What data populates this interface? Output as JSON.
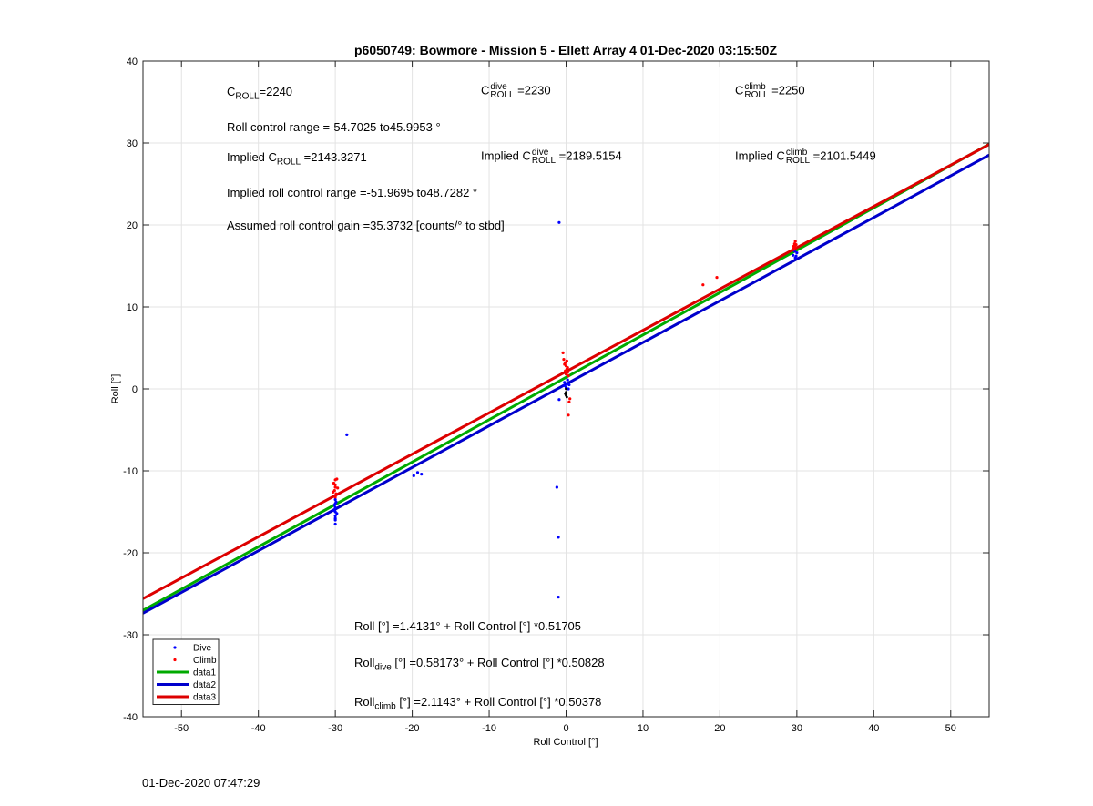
{
  "chart_data": {
    "type": "scatter",
    "title": "p6050749: Bowmore - Mission 5 - Ellett Array 4 01-Dec-2020 03:15:50Z",
    "xlabel": "Roll Control [°]",
    "ylabel": "Roll [°]",
    "xlim": [
      -55,
      55
    ],
    "ylim": [
      -40,
      40
    ],
    "xticks": [
      -50,
      -40,
      -30,
      -20,
      -10,
      0,
      10,
      20,
      30,
      40,
      50
    ],
    "yticks": [
      -40,
      -30,
      -20,
      -10,
      0,
      10,
      20,
      30,
      40
    ],
    "grid": true,
    "legend_position": "bottom-left",
    "series": [
      {
        "name": "Dive",
        "kind": "points",
        "color": "#0000ff",
        "points": [
          [
            -30.0,
            -13.5
          ],
          [
            -30.0,
            -14.0
          ],
          [
            -30.0,
            -14.5
          ],
          [
            -30.0,
            -15.0
          ],
          [
            -30.0,
            -15.5
          ],
          [
            -30.0,
            -16.0
          ],
          [
            -30.0,
            -16.5
          ],
          [
            -30.2,
            -14.8
          ],
          [
            -29.8,
            -15.2
          ],
          [
            -30.1,
            -14.2
          ],
          [
            -29.9,
            -13.8
          ],
          [
            -30.0,
            -15.8
          ],
          [
            -28.5,
            -5.6
          ],
          [
            -19.8,
            -10.6
          ],
          [
            -19.3,
            -10.2
          ],
          [
            -18.8,
            -10.4
          ],
          [
            -1.2,
            -12.0
          ],
          [
            -1.0,
            -18.1
          ],
          [
            -1.0,
            -25.4
          ],
          [
            -0.9,
            20.3
          ],
          [
            -0.9,
            -1.3
          ],
          [
            -0.3,
            0.4
          ],
          [
            -0.2,
            0.8
          ],
          [
            0.0,
            0.2
          ],
          [
            0.1,
            0.6
          ],
          [
            0.2,
            1.1
          ],
          [
            0.3,
            0.0
          ],
          [
            0.4,
            0.5
          ],
          [
            29.5,
            16.3
          ],
          [
            29.8,
            16.0
          ],
          [
            30.0,
            16.6
          ],
          [
            29.7,
            16.8
          ],
          [
            29.9,
            16.2
          ]
        ]
      },
      {
        "name": "Climb",
        "kind": "points",
        "color": "#ff0000",
        "points": [
          [
            -30.0,
            -11.1
          ],
          [
            -30.2,
            -11.5
          ],
          [
            -29.8,
            -11.0
          ],
          [
            -30.0,
            -12.0
          ],
          [
            -30.1,
            -12.4
          ],
          [
            -29.9,
            -12.8
          ],
          [
            -30.0,
            -13.2
          ],
          [
            -29.7,
            -12.1
          ],
          [
            -30.3,
            -12.6
          ],
          [
            -30.0,
            -11.7
          ],
          [
            -0.4,
            4.4
          ],
          [
            -0.3,
            3.6
          ],
          [
            -0.1,
            3.2
          ],
          [
            0.0,
            2.8
          ],
          [
            0.1,
            2.4
          ],
          [
            0.2,
            2.0
          ],
          [
            0.3,
            1.6
          ],
          [
            -0.2,
            3.0
          ],
          [
            0.1,
            3.4
          ],
          [
            -0.1,
            2.2
          ],
          [
            0.0,
            1.8
          ],
          [
            0.2,
            2.6
          ],
          [
            0.3,
            -3.2
          ],
          [
            0.4,
            -1.6
          ],
          [
            0.5,
            -1.2
          ],
          [
            17.8,
            12.7
          ],
          [
            19.6,
            13.6
          ],
          [
            29.5,
            17.1
          ],
          [
            29.6,
            17.4
          ],
          [
            29.7,
            17.7
          ],
          [
            29.8,
            18.0
          ],
          [
            29.9,
            17.6
          ],
          [
            29.6,
            17.0
          ],
          [
            29.8,
            17.3
          ]
        ]
      },
      {
        "name": "data1",
        "kind": "line",
        "color": "#00aa00",
        "intercept": 1.4131,
        "slope": 0.51705
      },
      {
        "name": "data2",
        "kind": "line",
        "color": "#0000cc",
        "intercept": 0.58173,
        "slope": 0.50828
      },
      {
        "name": "data3",
        "kind": "line",
        "color": "#dd0000",
        "intercept": 2.1143,
        "slope": 0.50378
      }
    ],
    "annotations": {
      "c_roll": {
        "base": "C",
        "sub": "ROLL",
        "value": "=2240"
      },
      "c_dive": {
        "base": "C",
        "sup": "dive",
        "sub": "ROLL",
        "value": " =2230"
      },
      "c_climb": {
        "base": "C",
        "sup": "climb",
        "sub": "ROLL",
        "value": " =2250"
      },
      "roll_control_range": "Roll control range =-54.7025 to45.9953 °",
      "implied_c_roll": {
        "prefix": "Implied C",
        "sub": "ROLL",
        "value": " =2143.3271"
      },
      "implied_c_dive": {
        "prefix": "Implied C",
        "sup": "dive",
        "sub": "ROLL",
        "value": " =2189.5154"
      },
      "implied_c_climb": {
        "prefix": "Implied C",
        "sup": "climb",
        "sub": "ROLL",
        "value": " =2101.5449"
      },
      "implied_range": "Implied roll control range =-51.9695 to48.7282 °",
      "gain": "Assumed roll control gain =35.3732 [counts/° to stbd]",
      "eq_all": "Roll [°] =1.4131° + Roll Control [°] *0.51705",
      "eq_dive": {
        "prefix": "Roll",
        "sub": "dive",
        "rest": " [°] =0.58173° + Roll Control [°] *0.50828"
      },
      "eq_climb": {
        "prefix": "Roll",
        "sub": "climb",
        "rest": " [°] =2.1143° + Roll Control [°] *0.50378"
      }
    }
  },
  "footer": {
    "timestamp": "01-Dec-2020 07:47:29"
  }
}
